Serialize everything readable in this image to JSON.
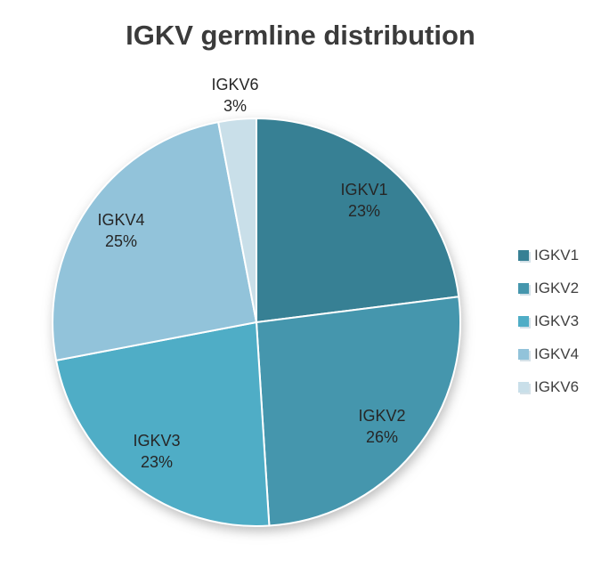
{
  "chart_data": {
    "type": "pie",
    "title": "IGKV germline distribution",
    "direction": "clockwise",
    "start_angle_deg": 0,
    "legend_position": "right",
    "grid": false,
    "categories": [
      "IGKV1",
      "IGKV2",
      "IGKV3",
      "IGKV4",
      "IGKV6"
    ],
    "values": [
      23,
      26,
      23,
      25,
      3
    ],
    "slices": [
      {
        "label": "IGKV1",
        "pct": 23,
        "pct_text": "23%",
        "color": "#378094",
        "label_inside": true,
        "label_radius_frac": 0.8
      },
      {
        "label": "IGKV2",
        "pct": 26,
        "pct_text": "26%",
        "color": "#4596ad",
        "label_inside": true,
        "label_radius_frac": 0.8
      },
      {
        "label": "IGKV3",
        "pct": 23,
        "pct_text": "23%",
        "color": "#4fadc6",
        "label_inside": true,
        "label_radius_frac": 0.8
      },
      {
        "label": "IGKV4",
        "pct": 25,
        "pct_text": "25%",
        "color": "#92c3da",
        "label_inside": true,
        "label_radius_frac": 0.8
      },
      {
        "label": "IGKV6",
        "pct": 3,
        "pct_text": "3%",
        "color": "#c9dfe9",
        "label_inside": false,
        "label_radius_frac": 1.12
      }
    ]
  },
  "style": {
    "title_color": "#3b3b3b",
    "slice_label_color": "#262626",
    "legend_text_color": "#404040",
    "slice_border_color": "#ffffff",
    "background": "#ffffff"
  }
}
